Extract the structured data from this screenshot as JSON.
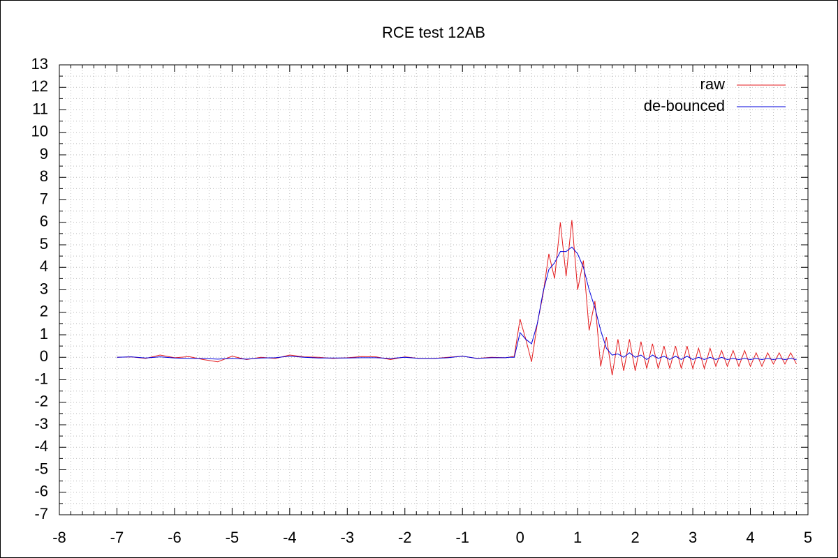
{
  "chart_data": {
    "type": "line",
    "title": "RCE test 12AB",
    "x": [
      -7,
      -6.75,
      -6.5,
      -6.25,
      -6,
      -5.75,
      -5.5,
      -5.25,
      -5,
      -4.75,
      -4.5,
      -4.25,
      -4,
      -3.75,
      -3.5,
      -3.25,
      -3,
      -2.75,
      -2.5,
      -2.25,
      -2,
      -1.75,
      -1.5,
      -1.25,
      -1,
      -0.75,
      -0.5,
      -0.25,
      -0.2,
      -0.1,
      0,
      0.1,
      0.2,
      0.3,
      0.4,
      0.5,
      0.6,
      0.7,
      0.8,
      0.9,
      1,
      1.1,
      1.2,
      1.3,
      1.4,
      1.5,
      1.6,
      1.7,
      1.8,
      1.9,
      2,
      2.1,
      2.2,
      2.3,
      2.4,
      2.5,
      2.6,
      2.7,
      2.8,
      2.9,
      3,
      3.1,
      3.2,
      3.3,
      3.4,
      3.5,
      3.6,
      3.7,
      3.8,
      3.9,
      4,
      4.1,
      4.2,
      4.3,
      4.4,
      4.5,
      4.6,
      4.7,
      4.8
    ],
    "series": [
      {
        "name": "raw",
        "color": "#e41a1c",
        "values": [
          0,
          0.02,
          -0.05,
          0.1,
          -0.02,
          0.03,
          -0.1,
          -0.2,
          0.05,
          -0.1,
          0,
          -0.05,
          0.1,
          0.02,
          0,
          -0.05,
          -0.02,
          0.03,
          0.02,
          -0.1,
          0.02,
          -0.05,
          -0.05,
          0,
          0.05,
          -0.05,
          0,
          -0.02,
          0,
          0.05,
          1.7,
          0.8,
          -0.2,
          1.5,
          2.8,
          4.6,
          3.5,
          6.0,
          3.6,
          6.1,
          3.0,
          4.3,
          1.2,
          2.5,
          -0.4,
          0.9,
          -0.8,
          0.8,
          -0.6,
          0.8,
          -0.6,
          0.7,
          -0.5,
          0.6,
          -0.5,
          0.5,
          -0.5,
          0.5,
          -0.5,
          0.5,
          -0.5,
          0.4,
          -0.5,
          0.4,
          -0.4,
          0.3,
          -0.4,
          0.3,
          -0.4,
          0.3,
          -0.4,
          0.2,
          -0.4,
          0.2,
          -0.3,
          0.2,
          -0.3,
          0.2,
          -0.3
        ]
      },
      {
        "name": "de-bounced",
        "color": "#0000dd",
        "values": [
          0,
          0.02,
          -0.03,
          0.02,
          -0.03,
          -0.05,
          -0.05,
          -0.08,
          -0.05,
          -0.08,
          -0.03,
          -0.02,
          0.05,
          0,
          -0.03,
          -0.03,
          -0.03,
          -0.02,
          -0.02,
          -0.05,
          0,
          -0.05,
          -0.05,
          -0.02,
          0.05,
          -0.05,
          -0.02,
          -0.02,
          0,
          0,
          1.1,
          0.8,
          0.6,
          1.5,
          2.9,
          3.9,
          4.2,
          4.7,
          4.7,
          4.9,
          4.6,
          4.0,
          3.0,
          2.2,
          1.2,
          0.4,
          0.1,
          0.15,
          0,
          0.2,
          0,
          0.1,
          -0.1,
          0.1,
          -0.05,
          0.05,
          -0.1,
          0.05,
          -0.1,
          0.05,
          -0.1,
          0,
          -0.1,
          0,
          -0.1,
          0,
          -0.1,
          -0.05,
          -0.1,
          -0.05,
          -0.1,
          -0.05,
          -0.1,
          -0.05,
          -0.1,
          -0.05,
          -0.1,
          -0.05,
          -0.1
        ]
      }
    ],
    "xlim": [
      -8,
      5
    ],
    "xticks": [
      -8,
      -7,
      -6,
      -5,
      -4,
      -3,
      -2,
      -1,
      0,
      1,
      2,
      3,
      4,
      5
    ],
    "ylim": [
      -7,
      13
    ],
    "yticks": [
      -7,
      -6,
      -5,
      -4,
      -3,
      -2,
      -1,
      0,
      1,
      2,
      3,
      4,
      5,
      6,
      7,
      8,
      9,
      10,
      11,
      12,
      13
    ],
    "grid": true,
    "minor_ticks": {
      "x": 5,
      "y": 2
    },
    "legend": "upper right"
  }
}
